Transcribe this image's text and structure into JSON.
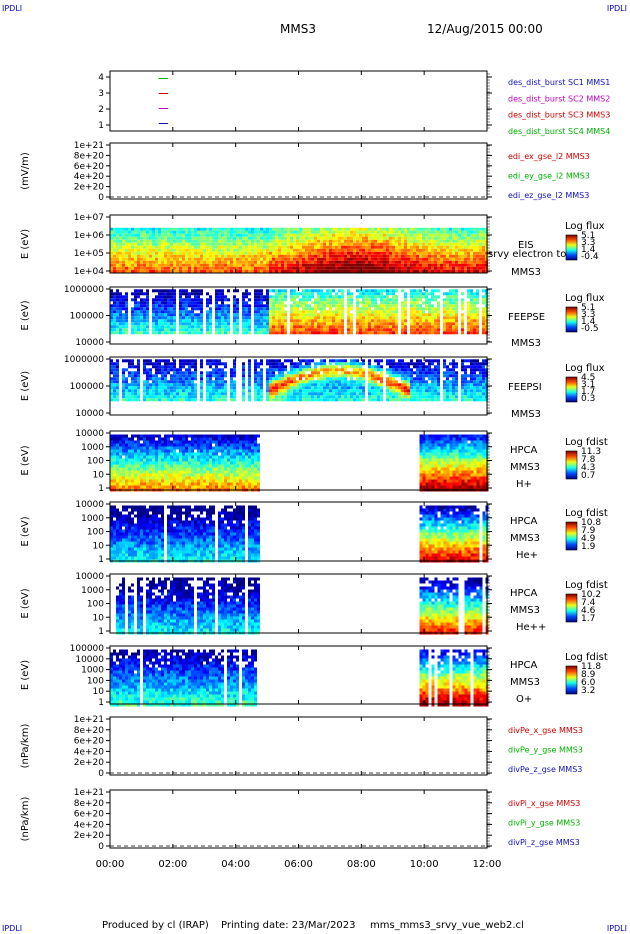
{
  "header": {
    "corner_label": "IPDLI",
    "spacecraft": "MMS3",
    "datetime": "12/Aug/2015 00:00"
  },
  "footer": {
    "produced_by": "Produced by cl (IRAP)",
    "printing_date": "Printing date: 23/Mar/2023",
    "filename": "mms_mms3_srvy_vue_web2.cl"
  },
  "chart_data": {
    "type": "heatmap",
    "x_ticks": [
      "00:00",
      "02:00",
      "04:00",
      "06:00",
      "08:00",
      "10:00",
      "12:00"
    ],
    "x_range_hours": [
      0,
      12
    ],
    "panels": [
      {
        "id": "burst",
        "type": "line",
        "y_ticks": [
          "4",
          "3",
          "2",
          "1"
        ],
        "ylim": [
          0.5,
          4.5
        ],
        "legend": [
          {
            "label": "des_dist_burst SC1 MMS1",
            "color": "#1010c0"
          },
          {
            "label": "des_dist_burst SC2 MMS2",
            "color": "#c000c0"
          },
          {
            "label": "des_dist_burst SC3 MMS3",
            "color": "#d00000"
          },
          {
            "label": "des_dist_burst SC4 MMS4",
            "color": "#00b000"
          }
        ],
        "segments": [
          {
            "y": 4,
            "x": [
              1.55,
              1.85
            ],
            "color": "#00b000"
          },
          {
            "y": 3,
            "x": [
              1.55,
              1.85
            ],
            "color": "#d00000"
          },
          {
            "y": 2,
            "x": [
              1.55,
              1.85
            ],
            "color": "#c000c0"
          },
          {
            "y": 1,
            "x": [
              1.55,
              1.85
            ],
            "color": "#1010c0"
          }
        ]
      },
      {
        "id": "edi",
        "type": "line",
        "ylabel": "(mV/m)",
        "y_ticks": [
          "1e+21",
          "8e+20",
          "6e+20",
          "4e+20",
          "2e+20",
          "0"
        ],
        "ylim": [
          0,
          1e+21
        ],
        "dashed_zero": true,
        "legend": [
          {
            "label": "edi_ex_gse_l2 MMS3",
            "color": "#d00000"
          },
          {
            "label": "edi_ey_gse_l2 MMS3",
            "color": "#00b000"
          },
          {
            "label": "edi_ez_gse_l2 MMS3",
            "color": "#1010c0"
          }
        ]
      },
      {
        "id": "eis",
        "type": "heatmap",
        "ylabel": "E (eV)",
        "y_ticks": [
          "1e+07",
          "1e+06",
          "1e+05",
          "1e+04"
        ],
        "ylim": [
          10000.0,
          10000000.0
        ],
        "right_labels": [
          "EIS",
          "srvy electron tot",
          "MMS3"
        ],
        "cbar_title": "Log flux",
        "cbar_ticks": [
          "5.1",
          "3.3",
          "1.4",
          "-0.4"
        ],
        "band": [
          0.78,
          0.02
        ],
        "coverage": [
          [
            0,
            12
          ]
        ],
        "scheme": "eis",
        "sparse": 0
      },
      {
        "id": "feepse",
        "type": "heatmap",
        "ylabel": "E (eV)",
        "y_ticks": [
          "1000000",
          "100000",
          "10000"
        ],
        "ylim": [
          10000.0,
          1000000.0
        ],
        "right_labels": [
          "FEEPSE",
          "MMS3"
        ],
        "cbar_title": "Log flux",
        "cbar_ticks": [
          "5.1",
          "3.3",
          "1.4",
          "-0.5"
        ],
        "band": [
          0.96,
          0.18
        ],
        "coverage": [
          [
            0,
            12
          ]
        ],
        "scheme": "feeps_e",
        "sparse": 0.35
      },
      {
        "id": "feepsi",
        "type": "heatmap",
        "ylabel": "E (eV)",
        "y_ticks": [
          "1000000",
          "100000",
          "10000"
        ],
        "ylim": [
          10000.0,
          1000000.0
        ],
        "right_labels": [
          "FEEPSI",
          "MMS3"
        ],
        "cbar_title": "Log flux",
        "cbar_ticks": [
          "4.5",
          "3.1",
          "1.7",
          "0.3"
        ],
        "band": [
          0.96,
          0.25
        ],
        "coverage": [
          [
            0,
            12
          ]
        ],
        "scheme": "feeps_i",
        "sparse": 0.4
      },
      {
        "id": "hpca_h",
        "type": "heatmap",
        "ylabel": "E (eV)",
        "y_ticks": [
          "10000",
          "1000",
          "100",
          "10",
          "1"
        ],
        "ylim": [
          1,
          40000
        ],
        "right_labels": [
          "HPCA",
          "MMS3",
          "H+"
        ],
        "cbar_title": "Log fdist",
        "cbar_ticks": [
          "11.3",
          "7.8",
          "4.3",
          "0.7"
        ],
        "band": [
          0.94,
          0.0
        ],
        "coverage": [
          [
            0,
            4.7
          ],
          [
            9.85,
            12
          ]
        ],
        "scheme": "hpca_h",
        "sparse": 0.05
      },
      {
        "id": "hpca_he",
        "type": "heatmap",
        "ylabel": "E (eV)",
        "y_ticks": [
          "10000",
          "1000",
          "100",
          "10",
          "1"
        ],
        "ylim": [
          1,
          40000
        ],
        "right_labels": [
          "HPCA",
          "MMS3",
          "He+"
        ],
        "cbar_title": "Log fdist",
        "cbar_ticks": [
          "10.8",
          "7.9",
          "4.9",
          "1.9"
        ],
        "band": [
          0.94,
          0.0
        ],
        "coverage": [
          [
            0,
            4.7
          ],
          [
            9.85,
            12
          ]
        ],
        "scheme": "hpca_he",
        "sparse": 0.35
      },
      {
        "id": "hpca_hepp",
        "type": "heatmap",
        "ylabel": "E (eV)",
        "y_ticks": [
          "10000",
          "1000",
          "100",
          "10",
          "1"
        ],
        "ylim": [
          1,
          40000
        ],
        "right_labels": [
          "HPCA",
          "MMS3",
          "He++"
        ],
        "cbar_title": "Log fdist",
        "cbar_ticks": [
          "10.2",
          "7.4",
          "4.6",
          "1.7"
        ],
        "band": [
          0.94,
          0.0
        ],
        "coverage": [
          [
            0,
            4.7
          ],
          [
            9.85,
            12
          ]
        ],
        "scheme": "hpca_hepp",
        "sparse": 0.55
      },
      {
        "id": "hpca_o",
        "type": "heatmap",
        "ylabel": "E (eV)",
        "y_ticks": [
          "100000",
          "10000",
          "1000",
          "100",
          "10",
          "1"
        ],
        "ylim": [
          1,
          100000
        ],
        "right_labels": [
          "HPCA",
          "MMS3",
          "O+"
        ],
        "cbar_title": "Log fdist",
        "cbar_ticks": [
          "11.8",
          "8.9",
          "6.0",
          "3.2"
        ],
        "band": [
          0.94,
          0.0
        ],
        "coverage": [
          [
            0,
            4.7
          ],
          [
            9.85,
            12
          ]
        ],
        "scheme": "hpca_o",
        "sparse": 0.45
      },
      {
        "id": "divpe",
        "type": "line",
        "ylabel": "(nPa/km)",
        "y_ticks": [
          "1e+21",
          "8e+20",
          "6e+20",
          "4e+20",
          "2e+20",
          "0"
        ],
        "ylim": [
          0,
          1e+21
        ],
        "dashed_zero": true,
        "legend": [
          {
            "label": "divPe_x_gse MMS3",
            "color": "#d00000"
          },
          {
            "label": "divPe_y_gse MMS3",
            "color": "#00b000"
          },
          {
            "label": "divPe_z_gse MMS3",
            "color": "#1010c0"
          }
        ]
      },
      {
        "id": "divpi",
        "type": "line",
        "ylabel": "(nPa/km)",
        "y_ticks": [
          "1e+21",
          "8e+20",
          "6e+20",
          "4e+20",
          "2e+20",
          "0"
        ],
        "ylim": [
          0,
          1e+21
        ],
        "dashed_zero": true,
        "legend": [
          {
            "label": "divPi_x_gse MMS3",
            "color": "#d00000"
          },
          {
            "label": "divPi_y_gse MMS3",
            "color": "#00b000"
          },
          {
            "label": "divPi_z_gse MMS3",
            "color": "#1010c0"
          }
        ]
      }
    ]
  }
}
